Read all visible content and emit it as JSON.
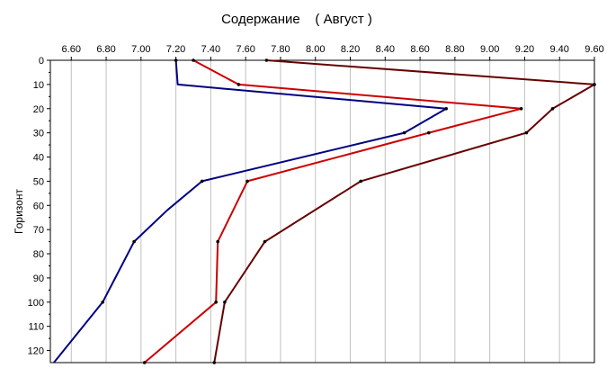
{
  "chart_data": {
    "type": "line",
    "title": "Содержание    ( Август )",
    "xlabel": "",
    "ylabel": "Горизонт",
    "xlim": [
      6.48,
      9.6
    ],
    "ylim": [
      0,
      125
    ],
    "x_ticks": [
      "6.60",
      "6.80",
      "7.00",
      "7.20",
      "7.40",
      "7.60",
      "7.80",
      "8.00",
      "8.20",
      "8.40",
      "8.60",
      "8.80",
      "9.00",
      "9.20",
      "9.40",
      "9.60"
    ],
    "y_ticks": [
      "0",
      "10",
      "20",
      "30",
      "40",
      "50",
      "60",
      "70",
      "80",
      "90",
      "100",
      "110",
      "120"
    ],
    "y_inverted": true,
    "x_axis_position": "top",
    "grid": "vertical",
    "legend": "none",
    "series": [
      {
        "color": "#000080",
        "points": [
          [
            7.2,
            0
          ],
          [
            7.21,
            10
          ],
          [
            8.75,
            20
          ],
          [
            8.51,
            30
          ],
          [
            7.35,
            50
          ],
          [
            7.15,
            62
          ],
          [
            6.96,
            75
          ],
          [
            6.78,
            100
          ],
          [
            6.5,
            125
          ]
        ],
        "markers": [
          [
            7.2,
            0
          ],
          [
            8.75,
            20
          ],
          [
            8.51,
            30
          ],
          [
            7.35,
            50
          ],
          [
            6.96,
            75
          ],
          [
            6.78,
            100
          ]
        ]
      },
      {
        "color": "#cc0000",
        "points": [
          [
            7.3,
            0
          ],
          [
            7.56,
            10
          ],
          [
            9.18,
            20
          ],
          [
            8.65,
            30
          ],
          [
            7.61,
            50
          ],
          [
            7.44,
            75
          ],
          [
            7.43,
            100
          ],
          [
            7.02,
            125
          ]
        ],
        "markers": [
          [
            7.3,
            0
          ],
          [
            7.56,
            10
          ],
          [
            9.18,
            20
          ],
          [
            8.65,
            30
          ],
          [
            7.61,
            50
          ],
          [
            7.44,
            75
          ],
          [
            7.43,
            100
          ],
          [
            7.02,
            125
          ]
        ]
      },
      {
        "color": "#660000",
        "points": [
          [
            7.72,
            0
          ],
          [
            9.6,
            10
          ],
          [
            9.36,
            20
          ],
          [
            9.21,
            30
          ],
          [
            8.26,
            50
          ],
          [
            7.71,
            75
          ],
          [
            7.48,
            100
          ],
          [
            7.42,
            125
          ]
        ],
        "markers": [
          [
            7.72,
            0
          ],
          [
            9.6,
            10
          ],
          [
            9.36,
            20
          ],
          [
            9.21,
            30
          ],
          [
            8.26,
            50
          ],
          [
            7.71,
            75
          ],
          [
            7.48,
            100
          ],
          [
            7.42,
            125
          ]
        ]
      }
    ]
  }
}
